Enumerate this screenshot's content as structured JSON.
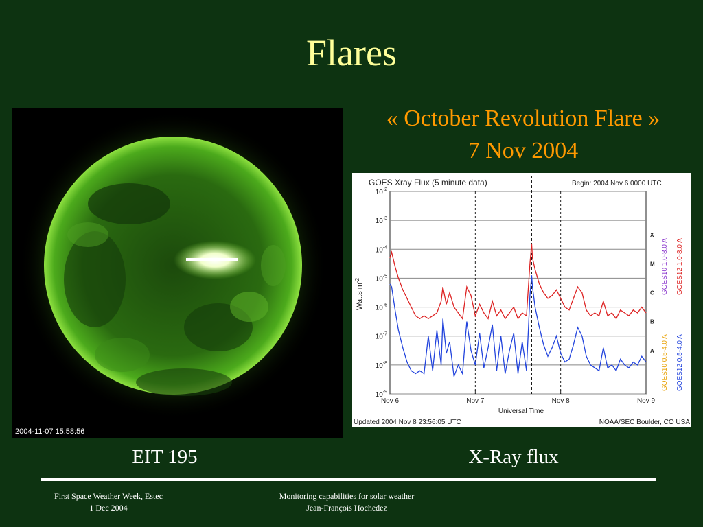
{
  "slide": {
    "title": "Flares"
  },
  "sun_image": {
    "timestamp": "2004-11-07 15:58:56"
  },
  "flare": {
    "name": "« October Revolution Flare »",
    "date": "7 Nov 2004"
  },
  "captions": {
    "left": "EIT 195",
    "right": "X-Ray flux"
  },
  "footer": {
    "left_line1": "First Space Weather Week, Estec",
    "left_line2": "1 Dec 2004",
    "center_line1": "Monitoring capabilities for solar weather",
    "center_line2": "Jean-François Hochedez"
  },
  "colors": {
    "background": "#0d3311",
    "title": "#ffff99",
    "accent": "#ff9900"
  },
  "chart_data": {
    "type": "line",
    "title": "GOES Xray Flux (5 minute data)",
    "begin_label": "Begin:  2004 Nov 6  0000 UTC",
    "ylabel": "Watts m",
    "ylabel_sup": "-2",
    "xlabel": "Universal Time",
    "x_ticks": [
      "Nov 6",
      "Nov 7",
      "Nov 8",
      "Nov 9"
    ],
    "xlim_days": [
      0,
      3
    ],
    "y_ticks": [
      {
        "base": "10",
        "exp": "-2",
        "value": -2
      },
      {
        "base": "10",
        "exp": "-3",
        "value": -3
      },
      {
        "base": "10",
        "exp": "-4",
        "value": -4
      },
      {
        "base": "10",
        "exp": "-5",
        "value": -5
      },
      {
        "base": "10",
        "exp": "-6",
        "value": -6
      },
      {
        "base": "10",
        "exp": "-7",
        "value": -7
      },
      {
        "base": "10",
        "exp": "-8",
        "value": -8
      },
      {
        "base": "10",
        "exp": "-9",
        "value": -9
      }
    ],
    "ylim_log": [
      -9,
      -2
    ],
    "y_scale": "log",
    "flare_classes": [
      {
        "label": "X",
        "value": -3.5
      },
      {
        "label": "M",
        "value": -4.5
      },
      {
        "label": "C",
        "value": -5.5
      },
      {
        "label": "B",
        "value": -6.5
      },
      {
        "label": "A",
        "value": -7.5
      }
    ],
    "marker_day": 1.66,
    "updated": "Updated 2004 Nov  8 23:56:05 UTC",
    "source": "NOAA/SEC Boulder, CO USA",
    "legend_goes10": [
      {
        "text": "GOES10 0.5-4.0 A",
        "color": "#e8a000"
      },
      {
        "text": "GOES10 1.0-8.0 A",
        "color": "#8833cc"
      }
    ],
    "legend_goes12": [
      {
        "text": "GOES12 0.5-4.0 A",
        "color": "#2244dd"
      },
      {
        "text": "GOES12 1.0-8.0 A",
        "color": "#dd2222"
      }
    ],
    "series": [
      {
        "name": "GOES12 1.0-8.0 A",
        "color": "#dd2222",
        "x": [
          0,
          0.02,
          0.06,
          0.1,
          0.15,
          0.2,
          0.25,
          0.3,
          0.35,
          0.4,
          0.45,
          0.5,
          0.55,
          0.6,
          0.62,
          0.66,
          0.7,
          0.75,
          0.8,
          0.85,
          0.9,
          0.95,
          1.0,
          1.05,
          1.1,
          1.15,
          1.2,
          1.25,
          1.3,
          1.35,
          1.4,
          1.45,
          1.5,
          1.55,
          1.6,
          1.64,
          1.66,
          1.67,
          1.7,
          1.75,
          1.8,
          1.85,
          1.9,
          1.95,
          2.0,
          2.05,
          2.1,
          2.15,
          2.2,
          2.25,
          2.3,
          2.35,
          2.4,
          2.45,
          2.5,
          2.55,
          2.6,
          2.65,
          2.7,
          2.75,
          2.8,
          2.85,
          2.9,
          2.95,
          3.0
        ],
        "y": [
          -4.3,
          -4.1,
          -4.6,
          -5.0,
          -5.4,
          -5.7,
          -6.0,
          -6.3,
          -6.4,
          -6.3,
          -6.4,
          -6.3,
          -6.2,
          -5.8,
          -5.3,
          -5.9,
          -5.5,
          -6.0,
          -6.2,
          -6.4,
          -5.3,
          -5.6,
          -6.3,
          -5.9,
          -6.2,
          -6.4,
          -5.8,
          -6.3,
          -6.1,
          -6.4,
          -6.2,
          -6.0,
          -6.4,
          -6.2,
          -6.3,
          -4.5,
          -3.8,
          -4.3,
          -4.7,
          -5.2,
          -5.5,
          -5.7,
          -5.6,
          -5.4,
          -5.7,
          -6.0,
          -6.1,
          -5.7,
          -5.3,
          -5.5,
          -6.1,
          -6.3,
          -6.2,
          -6.3,
          -5.8,
          -6.3,
          -6.2,
          -6.4,
          -6.1,
          -6.2,
          -6.3,
          -6.1,
          -6.2,
          -6.0,
          -6.2
        ]
      },
      {
        "name": "GOES12 0.5-4.0 A",
        "color": "#2244dd",
        "x": [
          0,
          0.02,
          0.06,
          0.1,
          0.15,
          0.2,
          0.25,
          0.3,
          0.35,
          0.4,
          0.45,
          0.5,
          0.55,
          0.6,
          0.62,
          0.66,
          0.7,
          0.75,
          0.8,
          0.85,
          0.9,
          0.95,
          1.0,
          1.05,
          1.1,
          1.15,
          1.2,
          1.25,
          1.3,
          1.35,
          1.4,
          1.45,
          1.5,
          1.55,
          1.6,
          1.64,
          1.66,
          1.67,
          1.7,
          1.75,
          1.8,
          1.85,
          1.9,
          1.95,
          2.0,
          2.05,
          2.1,
          2.15,
          2.2,
          2.25,
          2.3,
          2.35,
          2.4,
          2.45,
          2.5,
          2.55,
          2.6,
          2.65,
          2.7,
          2.75,
          2.8,
          2.85,
          2.9,
          2.95,
          3.0
        ],
        "y": [
          -5.2,
          -5.3,
          -6.1,
          -6.8,
          -7.4,
          -7.9,
          -8.2,
          -8.3,
          -8.2,
          -8.3,
          -7.0,
          -8.2,
          -6.8,
          -8.0,
          -6.4,
          -7.6,
          -7.2,
          -8.4,
          -8.0,
          -8.3,
          -6.5,
          -7.5,
          -8.0,
          -6.9,
          -8.1,
          -7.4,
          -6.6,
          -8.2,
          -7.0,
          -8.3,
          -7.5,
          -6.9,
          -8.3,
          -7.2,
          -8.2,
          -5.6,
          -4.9,
          -5.3,
          -6.0,
          -6.7,
          -7.3,
          -7.7,
          -7.4,
          -7.0,
          -7.6,
          -7.9,
          -7.8,
          -7.3,
          -6.7,
          -7.0,
          -7.7,
          -8.0,
          -8.1,
          -8.2,
          -7.4,
          -8.1,
          -8.0,
          -8.2,
          -7.8,
          -8.0,
          -8.1,
          -7.9,
          -8.0,
          -7.7,
          -7.9
        ]
      }
    ]
  }
}
